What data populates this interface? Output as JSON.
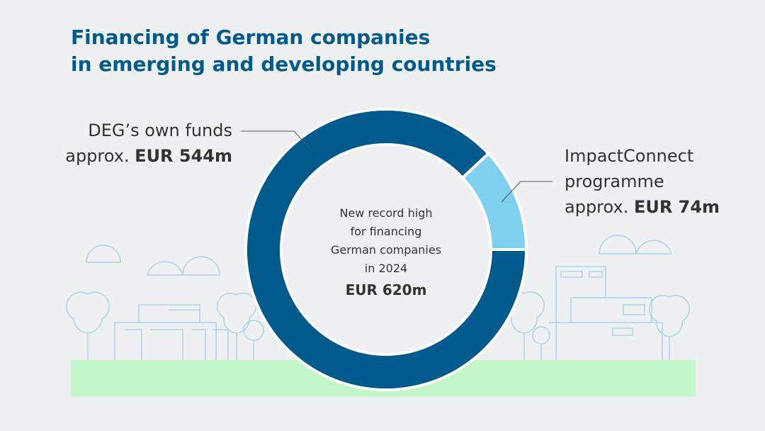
{
  "chart_data": {
    "type": "pie",
    "donut": true,
    "title": [
      "Financing of German companies",
      "in emerging and developing countries"
    ],
    "categories": [
      "DEG’s own funds",
      "ImpactConnect programme"
    ],
    "values": [
      544,
      74
    ],
    "value_prefixes": [
      "approx.",
      "approx."
    ],
    "value_labels": [
      "EUR 544m",
      "EUR 74m"
    ],
    "colors": [
      "#005a8c",
      "#7fcfee"
    ],
    "center_lines": [
      "New record high",
      "for financing",
      "German companies",
      "in 2024"
    ],
    "center_total": "EUR 620m"
  }
}
